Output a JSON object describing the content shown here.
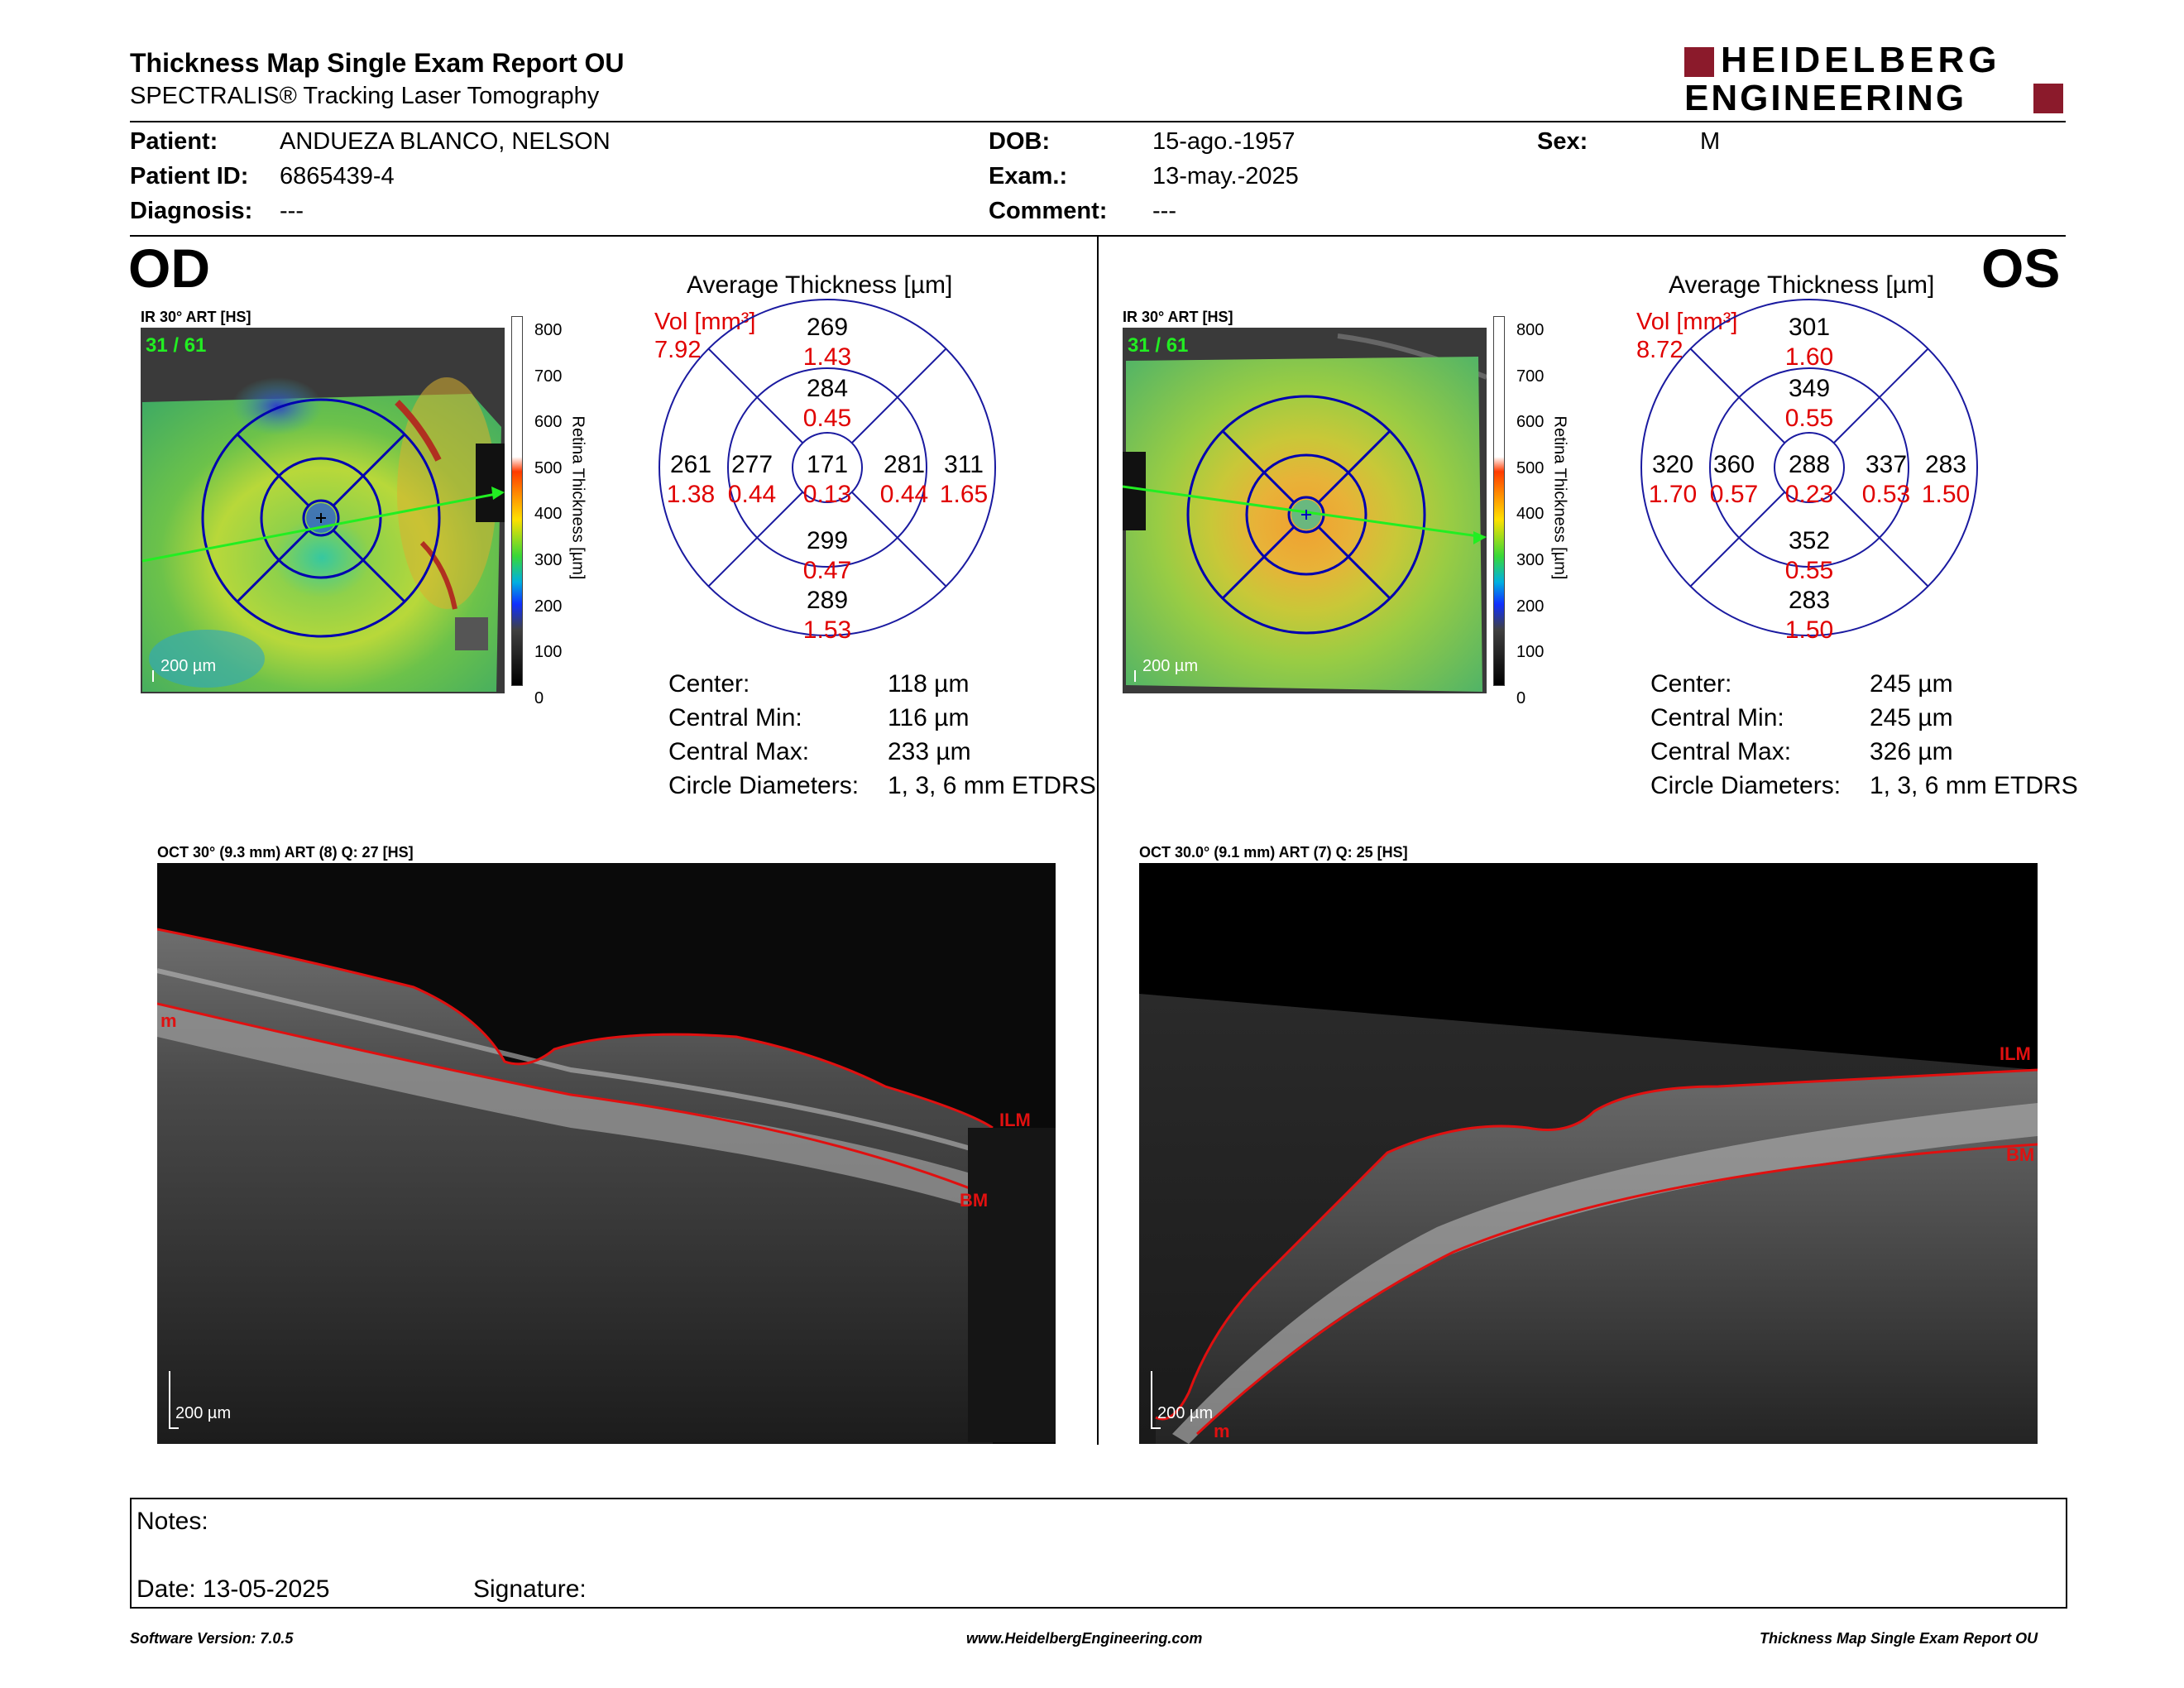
{
  "header": {
    "title": "Thickness Map Single Exam Report OU",
    "subtitle": "SPECTRALIS® Tracking Laser Tomography",
    "logo_line1": "HEIDELBERG",
    "logo_line2": "ENGINEERING"
  },
  "patient": {
    "name_label": "Patient:",
    "name": "ANDUEZA BLANCO, NELSON",
    "id_label": "Patient ID:",
    "id": "6865439-4",
    "diagnosis_label": "Diagnosis:",
    "diagnosis": "---",
    "dob_label": "DOB:",
    "dob": "15-ago.-1957",
    "exam_label": "Exam.:",
    "exam": "13-may.-2025",
    "comment_label": "Comment:",
    "comment": "---",
    "sex_label": "Sex:",
    "sex": "M"
  },
  "colorbar": {
    "label": "Retina Thickness [µm]",
    "ticks": [
      "800",
      "700",
      "600",
      "500",
      "400",
      "300",
      "200",
      "100",
      "0"
    ]
  },
  "od": {
    "eye": "OD",
    "ir_caption": "IR 30° ART [HS]",
    "frame": "31 / 61",
    "scale": "200 µm",
    "avg_title": "Average Thickness [µm]",
    "vol_label": "Vol [mm³]",
    "vol_total": "7.92",
    "grid": {
      "center": {
        "t": "171",
        "v": "0.13"
      },
      "inner_sup": {
        "t": "284",
        "v": "0.45"
      },
      "inner_inf": {
        "t": "299",
        "v": "0.47"
      },
      "inner_left": {
        "t": "277",
        "v": "0.44"
      },
      "inner_right": {
        "t": "281",
        "v": "0.44"
      },
      "outer_sup": {
        "t": "269",
        "v": "1.43"
      },
      "outer_inf": {
        "t": "289",
        "v": "1.53"
      },
      "outer_left": {
        "t": "261",
        "v": "1.38"
      },
      "outer_right": {
        "t": "311",
        "v": "1.65"
      }
    },
    "stats": {
      "center_label": "Center:",
      "center": "118 µm",
      "cmin_label": "Central Min:",
      "cmin": "116 µm",
      "cmax_label": "Central Max:",
      "cmax": "233 µm",
      "diam_label": "Circle Diameters:",
      "diam": "1, 3, 6 mm ETDRS"
    },
    "oct_caption": "OCT 30° (9.3 mm) ART (8) Q: 27 [HS]",
    "oct_scale": "200 µm",
    "ilm": "ILM",
    "bm": "BM",
    "m": "m"
  },
  "os": {
    "eye": "OS",
    "ir_caption": "IR 30° ART [HS]",
    "frame": "31 / 61",
    "scale": "200 µm",
    "avg_title": "Average Thickness [µm]",
    "vol_label": "Vol [mm³]",
    "vol_total": "8.72",
    "grid": {
      "center": {
        "t": "288",
        "v": "0.23"
      },
      "inner_sup": {
        "t": "349",
        "v": "0.55"
      },
      "inner_inf": {
        "t": "352",
        "v": "0.55"
      },
      "inner_left": {
        "t": "360",
        "v": "0.57"
      },
      "inner_right": {
        "t": "337",
        "v": "0.53"
      },
      "outer_sup": {
        "t": "301",
        "v": "1.60"
      },
      "outer_inf": {
        "t": "283",
        "v": "1.50"
      },
      "outer_left": {
        "t": "320",
        "v": "1.70"
      },
      "outer_right": {
        "t": "283",
        "v": "1.50"
      }
    },
    "stats": {
      "center_label": "Center:",
      "center": "245 µm",
      "cmin_label": "Central Min:",
      "cmin": "245 µm",
      "cmax_label": "Central Max:",
      "cmax": "326 µm",
      "diam_label": "Circle Diameters:",
      "diam": "1, 3, 6 mm ETDRS"
    },
    "oct_caption": "OCT 30.0° (9.1 mm) ART (7) Q: 25 [HS]",
    "oct_scale": "200 µm",
    "ilm": "ILM",
    "bm": "BM",
    "m": "m"
  },
  "notes": {
    "notes_label": "Notes:",
    "date_label": "Date: 13-05-2025",
    "signature_label": "Signature:"
  },
  "footer": {
    "software": "Software Version: 7.0.5",
    "website": "www.HeidelbergEngineering.com",
    "report": "Thickness Map Single Exam Report OU"
  }
}
